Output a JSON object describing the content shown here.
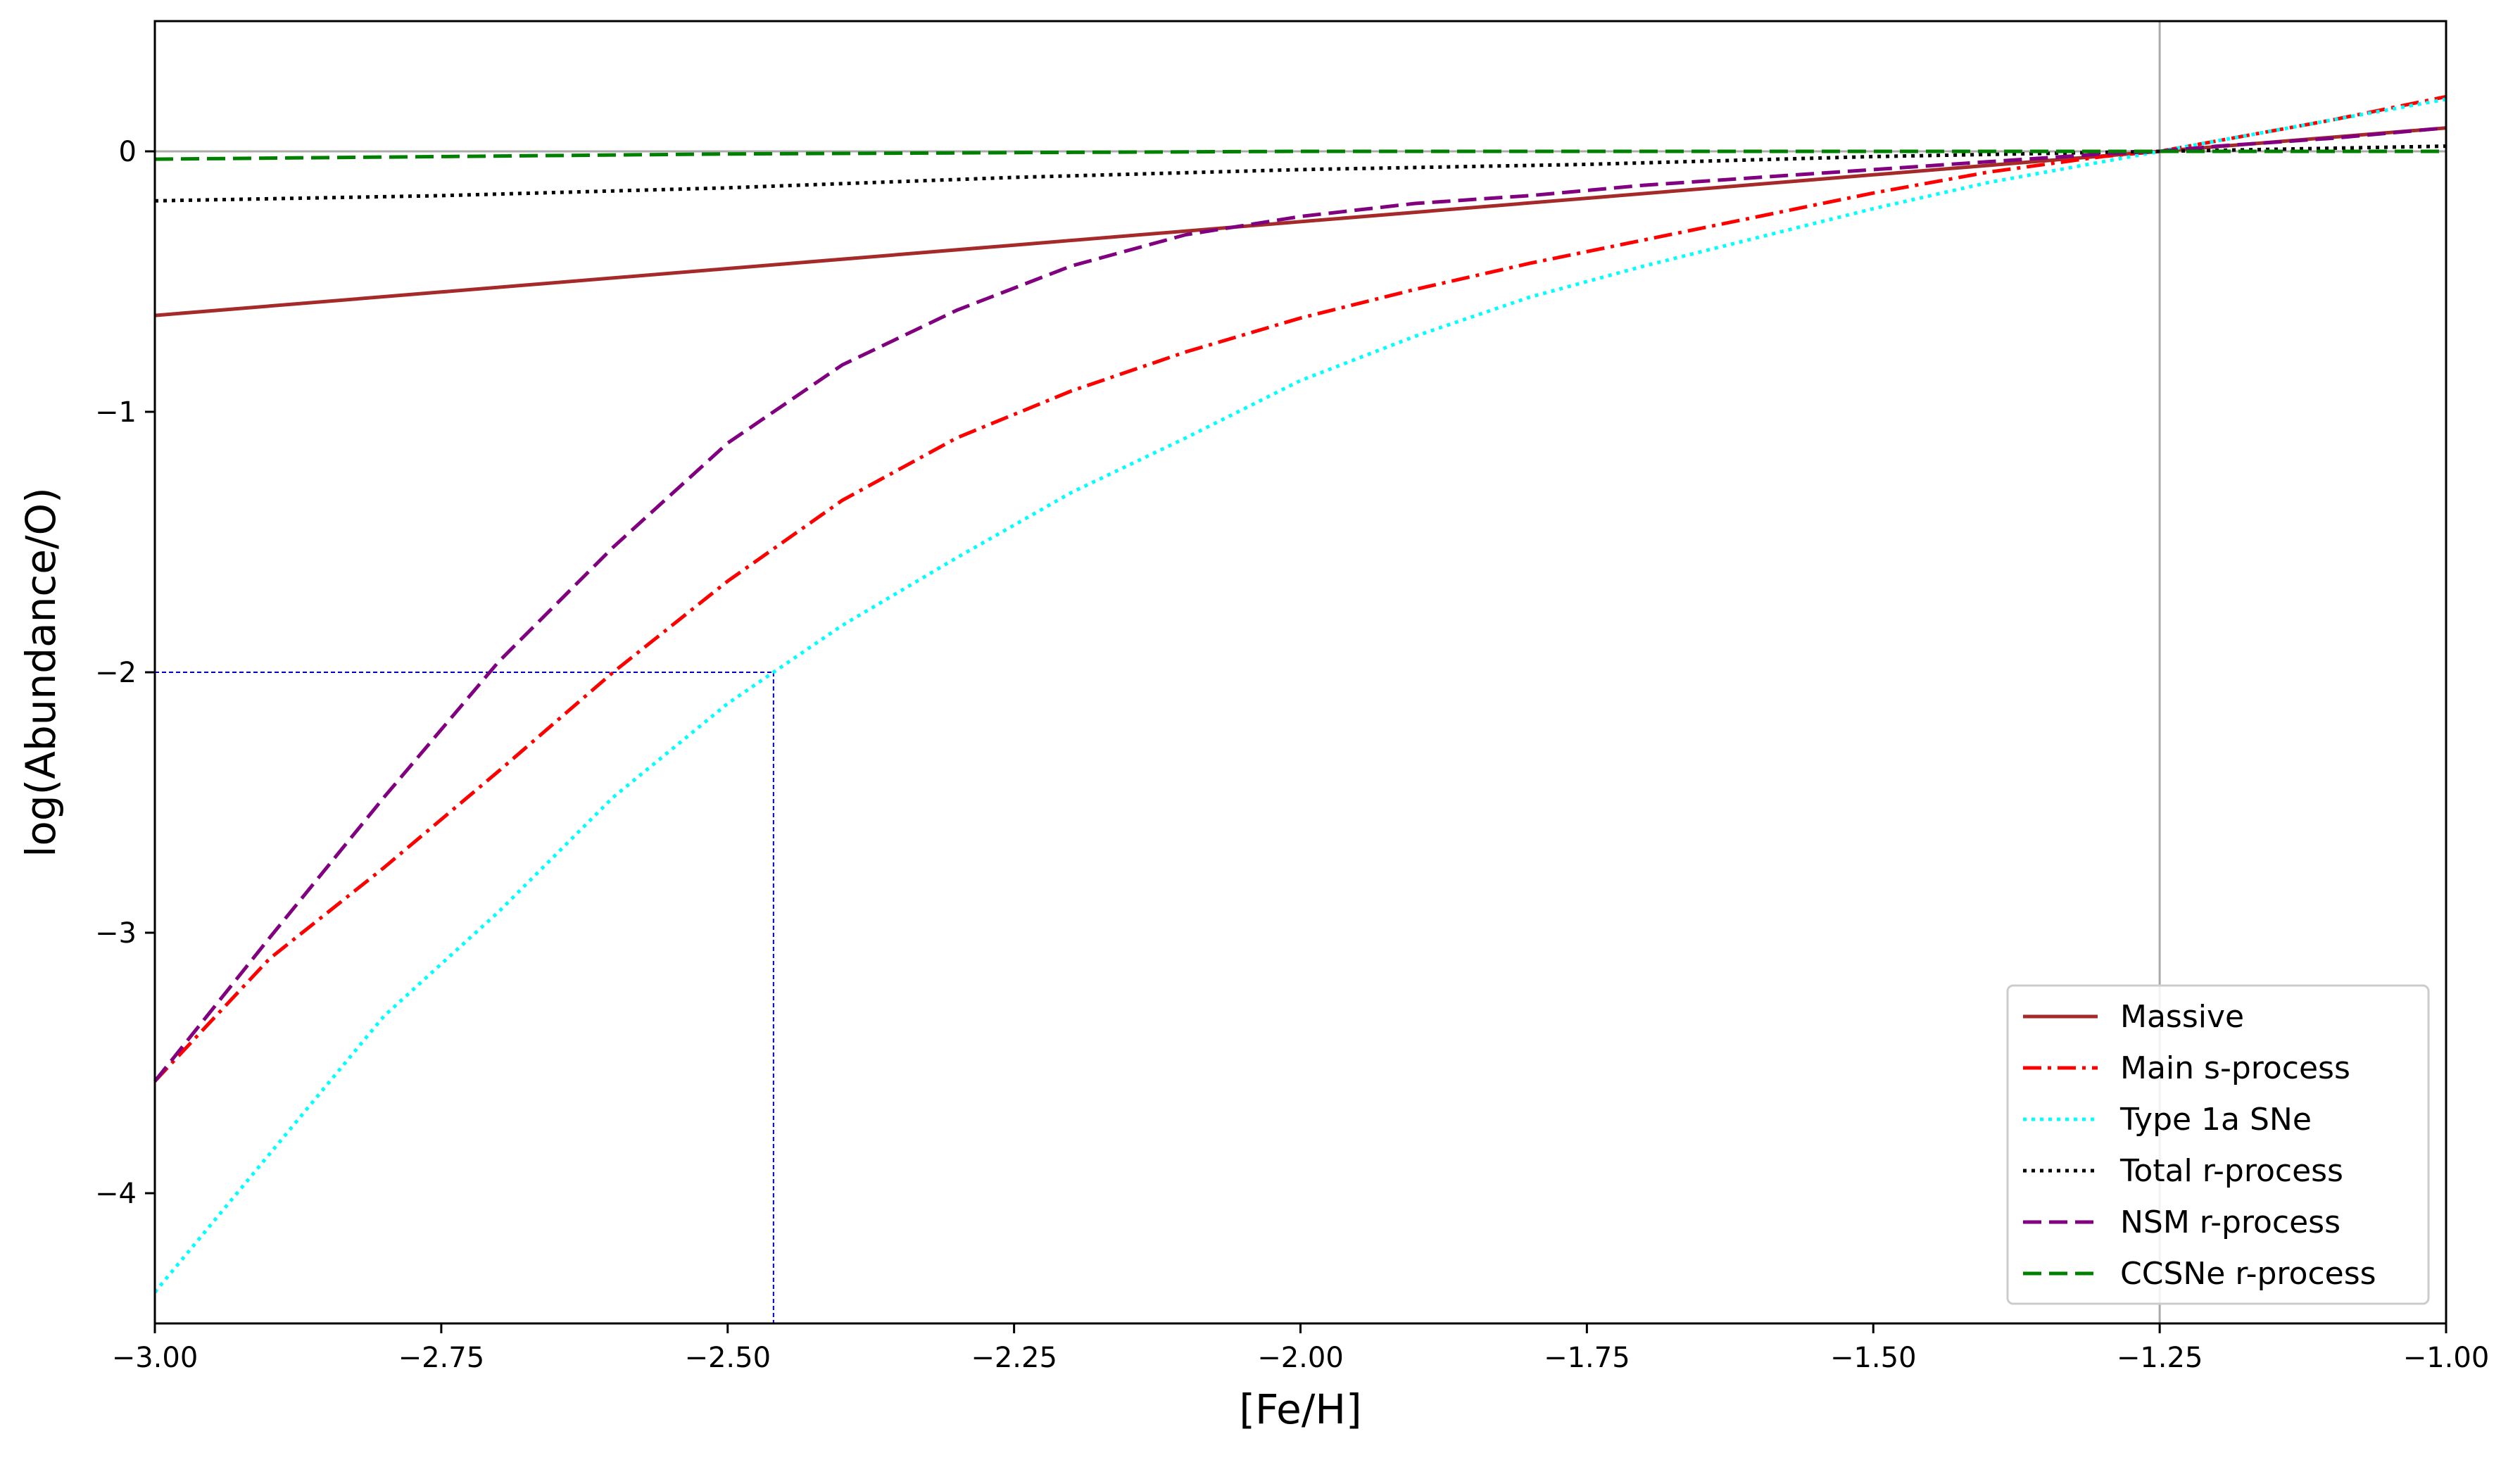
{
  "chart_data": {
    "type": "line",
    "title": "",
    "xlabel": "[Fe/H]",
    "ylabel": "log(Abundance/O)",
    "xlim": [
      -3.0,
      -1.0
    ],
    "ylim": [
      -4.5,
      0.5
    ],
    "xticks": [
      -3.0,
      -2.75,
      -2.5,
      -2.25,
      -2.0,
      -1.75,
      -1.5,
      -1.25,
      -1.0
    ],
    "xtick_labels": [
      "−3.00",
      "−2.75",
      "−2.50",
      "−2.25",
      "−2.00",
      "−1.75",
      "−1.50",
      "−1.25",
      "−1.00"
    ],
    "yticks": [
      0,
      -1,
      -2,
      -3,
      -4
    ],
    "ytick_labels": [
      "0",
      "−1",
      "−2",
      "−3",
      "−4"
    ],
    "grid": false,
    "legend_position": "lower-right",
    "reference_lines": {
      "horizontal_y": 0,
      "vertical_x": -1.25,
      "color": "#aaaaaa"
    },
    "marker_guide": {
      "x": -2.46,
      "y": -2.0,
      "color": "#0000cc",
      "style": "dashed"
    },
    "series": [
      {
        "name": "Massive",
        "color": "#a52a2a",
        "style": "solid",
        "x": [
          -3.0,
          -2.75,
          -2.5,
          -2.25,
          -2.0,
          -1.75,
          -1.5,
          -1.25,
          -1.0
        ],
        "y": [
          -0.63,
          -0.54,
          -0.45,
          -0.36,
          -0.27,
          -0.18,
          -0.09,
          0.0,
          0.09
        ]
      },
      {
        "name": "Main s-process",
        "color": "#ff0000",
        "style": "dashdot",
        "x": [
          -3.0,
          -2.9,
          -2.8,
          -2.7,
          -2.6,
          -2.5,
          -2.4,
          -2.3,
          -2.2,
          -2.1,
          -2.0,
          -1.9,
          -1.8,
          -1.7,
          -1.6,
          -1.5,
          -1.4,
          -1.3,
          -1.25,
          -1.2,
          -1.1,
          -1.0
        ],
        "y": [
          -3.57,
          -3.1,
          -2.75,
          -2.38,
          -2.0,
          -1.65,
          -1.34,
          -1.1,
          -0.92,
          -0.77,
          -0.64,
          -0.53,
          -0.43,
          -0.34,
          -0.25,
          -0.16,
          -0.08,
          -0.02,
          0.0,
          0.04,
          0.12,
          0.21
        ]
      },
      {
        "name": "Type 1a SNe",
        "color": "#00ffff",
        "style": "dotted",
        "x": [
          -3.0,
          -2.9,
          -2.8,
          -2.7,
          -2.6,
          -2.5,
          -2.46,
          -2.4,
          -2.3,
          -2.2,
          -2.1,
          -2.0,
          -1.9,
          -1.8,
          -1.7,
          -1.6,
          -1.5,
          -1.4,
          -1.3,
          -1.25,
          -1.2,
          -1.1,
          -1.0
        ],
        "y": [
          -4.38,
          -3.85,
          -3.32,
          -2.92,
          -2.48,
          -2.12,
          -2.0,
          -1.82,
          -1.56,
          -1.31,
          -1.1,
          -0.88,
          -0.71,
          -0.56,
          -0.44,
          -0.33,
          -0.22,
          -0.12,
          -0.04,
          0.0,
          0.04,
          0.12,
          0.2
        ]
      },
      {
        "name": "Total r-process",
        "color": "#000000",
        "style": "dotted",
        "x": [
          -3.0,
          -2.75,
          -2.5,
          -2.25,
          -2.0,
          -1.75,
          -1.5,
          -1.25,
          -1.0
        ],
        "y": [
          -0.19,
          -0.17,
          -0.14,
          -0.1,
          -0.07,
          -0.05,
          -0.02,
          0.0,
          0.02
        ]
      },
      {
        "name": "NSM r-process",
        "color": "#800080",
        "style": "dashed",
        "x": [
          -3.0,
          -2.9,
          -2.8,
          -2.7,
          -2.6,
          -2.5,
          -2.4,
          -2.3,
          -2.2,
          -2.1,
          -2.0,
          -1.9,
          -1.8,
          -1.7,
          -1.6,
          -1.5,
          -1.4,
          -1.3,
          -1.25,
          -1.2,
          -1.1,
          -1.0
        ],
        "y": [
          -3.57,
          -3.02,
          -2.48,
          -1.96,
          -1.52,
          -1.12,
          -0.82,
          -0.61,
          -0.44,
          -0.32,
          -0.25,
          -0.2,
          -0.17,
          -0.13,
          -0.1,
          -0.07,
          -0.04,
          -0.01,
          0.0,
          0.02,
          0.05,
          0.09
        ]
      },
      {
        "name": "CCSNe r-process",
        "color": "#008000",
        "style": "dashed",
        "x": [
          -3.0,
          -2.75,
          -2.5,
          -2.25,
          -2.0,
          -1.75,
          -1.5,
          -1.25,
          -1.0
        ],
        "y": [
          -0.03,
          -0.02,
          -0.01,
          -0.005,
          0.0,
          0.0,
          0.0,
          0.0,
          0.0
        ]
      }
    ]
  }
}
